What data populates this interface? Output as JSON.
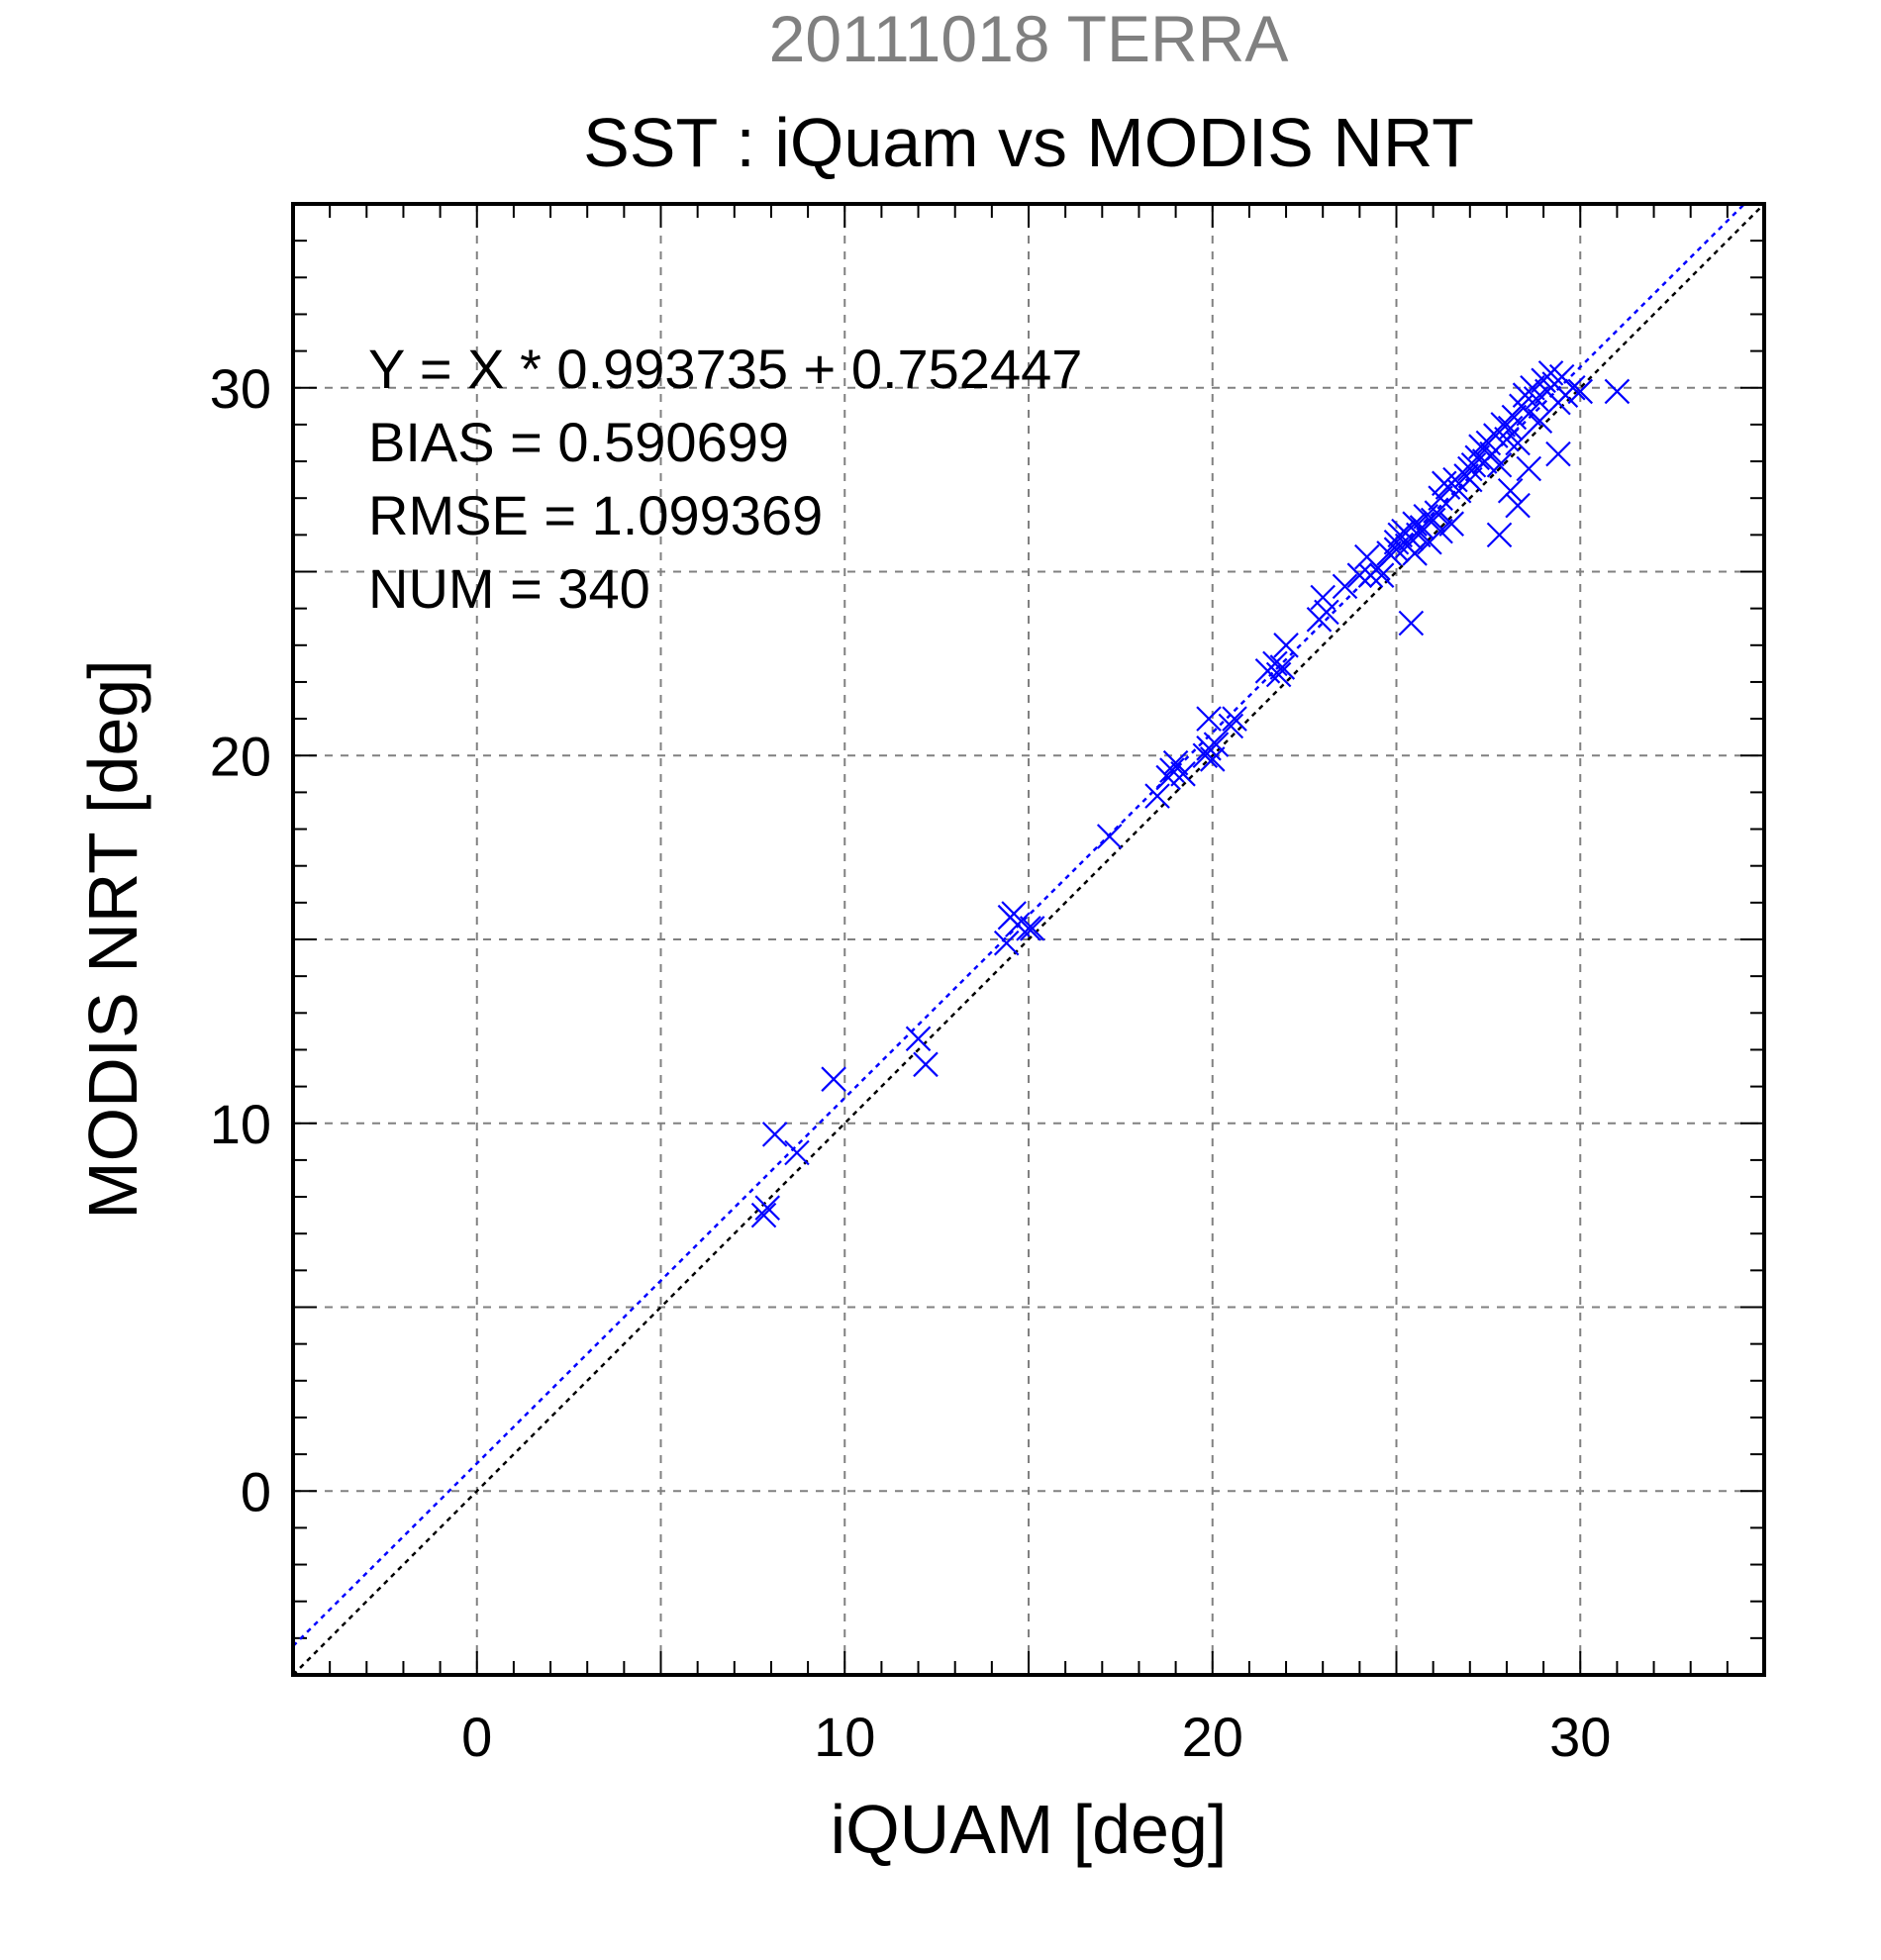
{
  "chart_data": {
    "type": "scatter",
    "supertitle": "20111018 TERRA",
    "title": "SST : iQuam vs MODIS NRT",
    "xlabel": "iQUAM [deg]",
    "ylabel": "MODIS NRT [deg]",
    "xlim": [
      -5,
      35
    ],
    "ylim": [
      -5,
      35
    ],
    "xticks": [
      0,
      10,
      20,
      30
    ],
    "yticks": [
      0,
      10,
      20,
      30
    ],
    "grid": true,
    "stats": [
      "Y = X * 0.993735 + 0.752447",
      "BIAS = 0.590699",
      "RMSE = 1.099369",
      "NUM = 340"
    ],
    "reference_lines": [
      {
        "slope": 1.0,
        "intercept": 0.0,
        "color": "#000000"
      },
      {
        "slope": 0.993735,
        "intercept": 0.752447,
        "color": "#0000ff"
      }
    ],
    "series": [
      {
        "color": "#0000ff",
        "marker": "x",
        "points": [
          [
            7.8,
            7.5
          ],
          [
            7.9,
            7.7
          ],
          [
            8.1,
            9.7
          ],
          [
            8.7,
            9.2
          ],
          [
            9.7,
            11.2
          ],
          [
            12.0,
            12.3
          ],
          [
            12.2,
            11.6
          ],
          [
            14.4,
            14.9
          ],
          [
            14.5,
            15.6
          ],
          [
            14.6,
            15.7
          ],
          [
            14.7,
            15.4
          ],
          [
            15.0,
            15.3
          ],
          [
            15.1,
            15.3
          ],
          [
            17.2,
            17.8
          ],
          [
            18.5,
            18.9
          ],
          [
            18.8,
            19.4
          ],
          [
            18.9,
            19.6
          ],
          [
            19.0,
            19.8
          ],
          [
            19.2,
            19.5
          ],
          [
            19.8,
            20.0
          ],
          [
            19.9,
            20.2
          ],
          [
            19.9,
            21.0
          ],
          [
            20.0,
            19.9
          ],
          [
            20.1,
            20.3
          ],
          [
            20.5,
            20.8
          ],
          [
            20.6,
            21.0
          ],
          [
            21.5,
            22.3
          ],
          [
            21.7,
            22.5
          ],
          [
            21.8,
            22.2
          ],
          [
            21.9,
            22.4
          ],
          [
            22.0,
            23.0
          ],
          [
            22.9,
            23.7
          ],
          [
            23.0,
            24.3
          ],
          [
            23.1,
            23.9
          ],
          [
            23.6,
            24.6
          ],
          [
            24.0,
            24.9
          ],
          [
            24.2,
            25.4
          ],
          [
            24.3,
            24.9
          ],
          [
            24.5,
            25.1
          ],
          [
            24.6,
            24.9
          ],
          [
            24.8,
            25.5
          ],
          [
            25.0,
            25.8
          ],
          [
            25.1,
            26.0
          ],
          [
            25.2,
            26.1
          ],
          [
            25.3,
            25.7
          ],
          [
            25.4,
            25.9
          ],
          [
            25.5,
            26.3
          ],
          [
            25.6,
            26.0
          ],
          [
            25.7,
            26.2
          ],
          [
            25.8,
            26.5
          ],
          [
            25.9,
            25.8
          ],
          [
            26.0,
            26.4
          ],
          [
            26.1,
            26.6
          ],
          [
            26.2,
            27.0
          ],
          [
            26.3,
            27.4
          ],
          [
            26.4,
            27.3
          ],
          [
            26.5,
            26.3
          ],
          [
            26.6,
            27.5
          ],
          [
            26.7,
            27.2
          ],
          [
            26.9,
            27.6
          ],
          [
            27.0,
            27.8
          ],
          [
            27.1,
            27.9
          ],
          [
            27.2,
            28.1
          ],
          [
            27.3,
            28.4
          ],
          [
            27.4,
            28.0
          ],
          [
            27.5,
            28.5
          ],
          [
            27.6,
            28.2
          ],
          [
            27.7,
            28.7
          ],
          [
            27.8,
            27.9
          ],
          [
            27.9,
            29.0
          ],
          [
            28.0,
            28.6
          ],
          [
            28.1,
            28.9
          ],
          [
            28.2,
            29.2
          ],
          [
            28.3,
            28.5
          ],
          [
            28.4,
            29.5
          ],
          [
            28.5,
            29.8
          ],
          [
            28.6,
            29.3
          ],
          [
            28.7,
            30.0
          ],
          [
            28.8,
            29.7
          ],
          [
            28.9,
            29.1
          ],
          [
            29.0,
            30.2
          ],
          [
            29.1,
            29.9
          ],
          [
            29.2,
            30.4
          ],
          [
            29.3,
            30.1
          ],
          [
            29.4,
            29.6
          ],
          [
            29.5,
            30.3
          ],
          [
            29.6,
            29.8
          ],
          [
            29.8,
            30.0
          ],
          [
            30.0,
            29.9
          ],
          [
            25.0,
            25.6
          ],
          [
            25.5,
            25.5
          ],
          [
            27.8,
            26.0
          ],
          [
            28.1,
            27.2
          ],
          [
            28.3,
            26.8
          ],
          [
            28.6,
            27.8
          ],
          [
            29.4,
            28.2
          ],
          [
            25.4,
            23.6
          ],
          [
            31.0,
            29.9
          ],
          [
            26.2,
            26.1
          ],
          [
            27.0,
            27.5
          ]
        ]
      }
    ]
  }
}
